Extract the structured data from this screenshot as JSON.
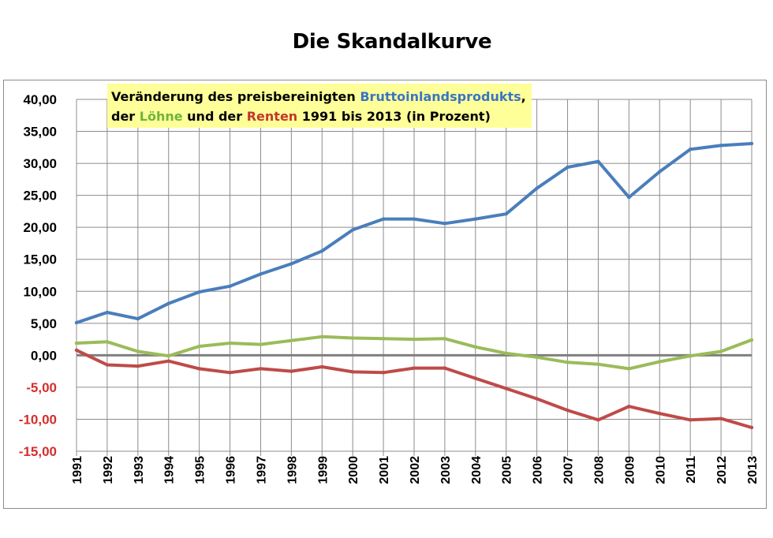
{
  "chart_data": {
    "type": "line",
    "title": "Die Skandalkurve",
    "annotation": {
      "line1_prefix": "Veränderung des preisbereinigten ",
      "line1_gdp": "Bruttoinlandsprodukts",
      "line1_suffix": ",",
      "line2_prefix": "der ",
      "line2_wages": "Löhne",
      "line2_middle": " und der ",
      "line2_pensions": "Renten",
      "line2_suffix": " 1991 bis 2013 (in Prozent)"
    },
    "x": [
      "1991",
      "1992",
      "1993",
      "1994",
      "1995",
      "1996",
      "1997",
      "1998",
      "1999",
      "2000",
      "2001",
      "2002",
      "2003",
      "2004",
      "2005",
      "2006",
      "2007",
      "2008",
      "2009",
      "2010",
      "2011",
      "2012",
      "2013"
    ],
    "y_ticks": [
      "40,00",
      "35,00",
      "30,00",
      "25,00",
      "20,00",
      "15,00",
      "10,00",
      "5,00",
      "0,00",
      "-5,00",
      "-10,00",
      "-15,00"
    ],
    "ylim": [
      -15,
      40
    ],
    "grid": true,
    "series": [
      {
        "name": "Bruttoinlandsprodukts",
        "color": "#4a7ebb",
        "values": [
          5.1,
          6.7,
          5.7,
          8.1,
          9.9,
          10.8,
          12.7,
          14.3,
          16.3,
          19.6,
          21.3,
          21.3,
          20.6,
          21.3,
          22.1,
          26.1,
          29.4,
          30.3,
          24.7,
          28.7,
          32.2,
          32.8,
          33.1
        ]
      },
      {
        "name": "Löhne",
        "color": "#9bbb59",
        "values": [
          1.9,
          2.1,
          0.6,
          -0.1,
          1.4,
          1.9,
          1.7,
          2.3,
          2.9,
          2.7,
          2.6,
          2.5,
          2.6,
          1.3,
          0.3,
          -0.3,
          -1.1,
          -1.4,
          -2.1,
          -1.0,
          -0.1,
          0.6,
          2.4
        ]
      },
      {
        "name": "Renten",
        "color": "#be4b48",
        "values": [
          0.8,
          -1.5,
          -1.7,
          -0.9,
          -2.1,
          -2.7,
          -2.1,
          -2.5,
          -1.8,
          -2.6,
          -2.7,
          -2.0,
          -2.0,
          -3.6,
          -5.2,
          -6.8,
          -8.6,
          -10.1,
          -8.0,
          -9.1,
          -10.1,
          -9.9,
          -11.3
        ]
      }
    ],
    "colors": {
      "tick_positive": "#000000",
      "tick_negative": "#d62d2d",
      "grid": "#8c8c8c",
      "zero_line": "#7f7f7f",
      "annotation_bg": "#ffff99"
    }
  }
}
